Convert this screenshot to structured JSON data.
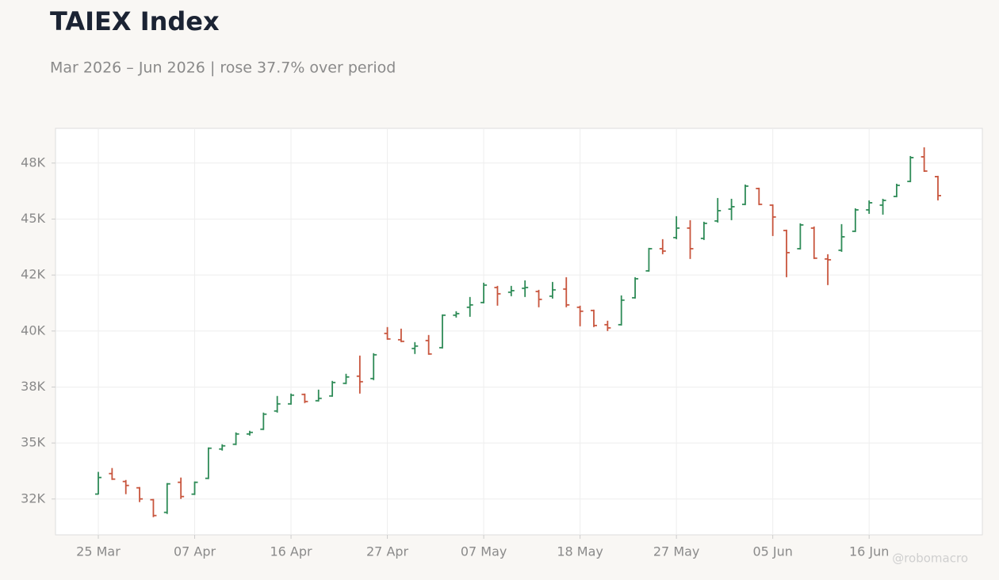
{
  "chart_data": {
    "type": "ohlc",
    "title": "TAIEX Index",
    "subtitle": "Mar 2026 – Jun 2026 | rose 37.7% over period",
    "watermark": "@robomacro",
    "categories": [
      "25 Mar",
      null,
      null,
      null,
      null,
      null,
      null,
      "07 Apr",
      null,
      null,
      null,
      null,
      null,
      null,
      "16 Apr",
      null,
      null,
      null,
      null,
      null,
      null,
      "27 Apr",
      null,
      null,
      null,
      null,
      null,
      null,
      "07 May",
      null,
      null,
      null,
      null,
      null,
      null,
      "18 May",
      null,
      null,
      null,
      null,
      null,
      null,
      "27 May",
      null,
      null,
      null,
      null,
      null,
      null,
      "05 Jun",
      null,
      null,
      null,
      null,
      null,
      null,
      "16 Jun",
      null,
      null,
      null,
      null,
      null
    ],
    "open": [
      32720,
      33635,
      33282,
      32999,
      32468,
      31903,
      33246,
      32716,
      33423,
      34731,
      34944,
      35403,
      35615,
      36429,
      36747,
      37171,
      36888,
      37100,
      37666,
      37984,
      37878,
      39894,
      39611,
      39222,
      39575,
      39257,
      40707,
      41061,
      41273,
      41945,
      41733,
      41909,
      41768,
      41556,
      41874,
      41061,
      40919,
      40283,
      40283,
      41485,
      42687,
      43677,
      44173,
      44597,
      44137,
      44915,
      45445,
      45658,
      46365,
      45622,
      44491,
      43677,
      44597,
      43218,
      43607,
      44455,
      45410,
      45622,
      46011,
      46683,
      47779,
      46895
    ],
    "high": [
      33710,
      33883,
      33350,
      33035,
      32504,
      33211,
      33458,
      33282,
      34802,
      34944,
      35474,
      35545,
      36358,
      37100,
      37207,
      37207,
      37383,
      37772,
      38091,
      38904,
      39010,
      40177,
      40106,
      39505,
      39823,
      40743,
      40884,
      41520,
      42157,
      42016,
      42016,
      42263,
      41839,
      42192,
      42404,
      41132,
      40955,
      40460,
      41591,
      42404,
      43713,
      44102,
      45128,
      44950,
      44880,
      45940,
      45905,
      46542,
      46400,
      45658,
      44526,
      44809,
      44668,
      43430,
      44774,
      45481,
      45834,
      45905,
      46577,
      47815,
      48204,
      46931
    ],
    "low": [
      32700,
      33352,
      32716,
      32362,
      31690,
      31832,
      32504,
      32680,
      33388,
      34661,
      34908,
      35332,
      35580,
      36358,
      36712,
      36782,
      36853,
      37065,
      37631,
      37207,
      37808,
      39611,
      39505,
      38975,
      38939,
      39222,
      40601,
      40636,
      41238,
      41132,
      41556,
      41520,
      41061,
      41450,
      41061,
      40212,
      40177,
      40000,
      40247,
      41450,
      42652,
      43430,
      44102,
      43218,
      44066,
      44844,
      44950,
      45622,
      45622,
      44243,
      42404,
      43642,
      43218,
      42051,
      43536,
      44420,
      45233,
      45198,
      45976,
      46648,
      47107,
      45834
    ],
    "close": [
      33460,
      33388,
      33105,
      32504,
      31761,
      33176,
      32610,
      33246,
      34767,
      34873,
      35403,
      35474,
      36287,
      36747,
      37136,
      36853,
      36994,
      37702,
      37949,
      37737,
      38939,
      39646,
      39540,
      39328,
      38975,
      40707,
      40778,
      41167,
      42051,
      41662,
      41803,
      41945,
      41414,
      41839,
      41167,
      40884,
      40247,
      40141,
      41379,
      42334,
      43677,
      43571,
      44597,
      43677,
      44809,
      45375,
      45552,
      46471,
      45658,
      45092,
      43501,
      44738,
      43253,
      43182,
      44208,
      45410,
      45728,
      45834,
      46506,
      47744,
      47143,
      46047
    ],
    "up_color": "#2e8b57",
    "down_color": "#c8553d",
    "ylim": [
      30900,
      49050
    ],
    "yticks": [
      {
        "value": 32500,
        "label": "32K"
      },
      {
        "value": 35000,
        "label": "35K"
      },
      {
        "value": 37500,
        "label": "38K"
      },
      {
        "value": 40000,
        "label": "40K"
      },
      {
        "value": 42500,
        "label": "42K"
      },
      {
        "value": 45000,
        "label": "45K"
      },
      {
        "value": 47500,
        "label": "48K"
      }
    ],
    "grid": true
  }
}
